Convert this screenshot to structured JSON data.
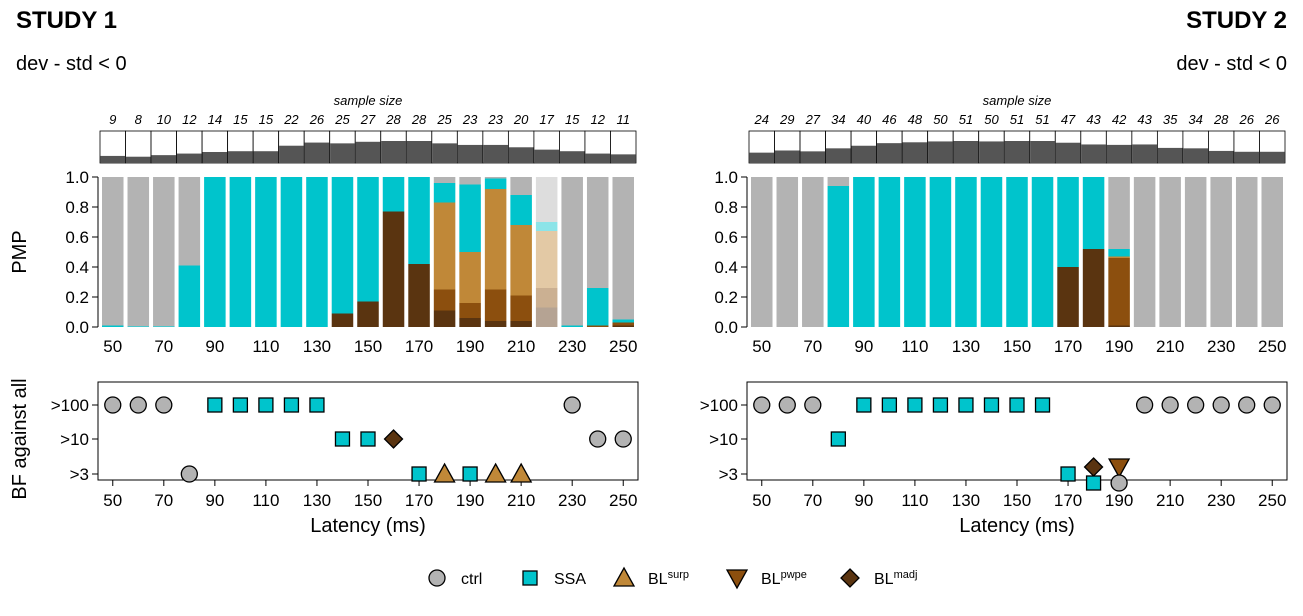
{
  "colors": {
    "ctrl": "#b3b3b3",
    "ssa": "#00c4cc",
    "bl_surp": "#c08838",
    "bl_pwpe": "#8c4f0e",
    "bl_madj": "#5a3410",
    "sample_bar": "#555555"
  },
  "legend": [
    {
      "key": "ctrl",
      "label": "ctrl",
      "sup": "",
      "shape": "circle",
      "icon": "circle-icon"
    },
    {
      "key": "ssa",
      "label": "SSA",
      "sup": "",
      "shape": "square",
      "icon": "square-icon"
    },
    {
      "key": "bl_surp",
      "label": "BL",
      "sup": "surp",
      "shape": "triangle-up",
      "icon": "triangle-up-icon"
    },
    {
      "key": "bl_pwpe",
      "label": "BL",
      "sup": "pwpe",
      "shape": "triangle-down",
      "icon": "triangle-down-icon"
    },
    {
      "key": "bl_madj",
      "label": "BL",
      "sup": "madj",
      "shape": "diamond",
      "icon": "diamond-icon"
    }
  ],
  "chart_data": [
    {
      "panel": "study1",
      "title": "STUDY 1",
      "subtitle": "dev - std < 0",
      "sample_size_label": "sample size",
      "type": "bar",
      "x": [
        50,
        60,
        70,
        80,
        90,
        100,
        110,
        120,
        130,
        140,
        150,
        160,
        170,
        180,
        190,
        200,
        210,
        220,
        230,
        240,
        250
      ],
      "sample_size": [
        9,
        8,
        10,
        12,
        14,
        15,
        15,
        22,
        26,
        25,
        27,
        28,
        28,
        25,
        23,
        23,
        20,
        17,
        15,
        12,
        11
      ],
      "sample_size_max": 28,
      "faded": [
        220
      ],
      "pmp_ylabel": "PMP",
      "pmp_yticks": [
        "0.0",
        "0.2",
        "0.4",
        "0.6",
        "0.8",
        "1.0"
      ],
      "pmp_xticks": [
        50,
        70,
        90,
        110,
        130,
        150,
        170,
        190,
        210,
        230,
        250
      ],
      "pmp": {
        "bl_madj": [
          0,
          0,
          0,
          0,
          0,
          0,
          0,
          0,
          0,
          0.09,
          0.17,
          0.77,
          0.42,
          0.11,
          0.06,
          0.04,
          0.04,
          0.13,
          0,
          0,
          0.01
        ],
        "bl_pwpe": [
          0,
          0,
          0,
          0,
          0,
          0,
          0,
          0,
          0,
          0,
          0,
          0,
          0,
          0.14,
          0.1,
          0.21,
          0.17,
          0.13,
          0,
          0.01,
          0.02
        ],
        "bl_surp": [
          0,
          0,
          0,
          0,
          0,
          0,
          0,
          0,
          0,
          0,
          0,
          0,
          0,
          0.58,
          0.34,
          0.67,
          0.47,
          0.38,
          0,
          0,
          0
        ],
        "ssa": [
          0.01,
          0.005,
          0.005,
          0.41,
          1.0,
          1.0,
          1.0,
          1.0,
          1.0,
          0.91,
          0.83,
          0.23,
          0.58,
          0.13,
          0.45,
          0.07,
          0.2,
          0.06,
          0.01,
          0.25,
          0.02
        ],
        "ctrl": [
          0.99,
          0.995,
          0.995,
          0.59,
          0,
          0,
          0,
          0,
          0,
          0,
          0,
          0,
          0,
          0.04,
          0.05,
          0.01,
          0.12,
          0.3,
          0.99,
          0.74,
          0.95
        ]
      },
      "bf_ylabel": "BF against all",
      "bf_levels": [
        ">100",
        ">10",
        ">3"
      ],
      "bf_xticks": [
        50,
        70,
        90,
        110,
        130,
        150,
        170,
        190,
        210,
        230,
        250
      ],
      "bf_points": [
        {
          "x": 50,
          "level": ">100",
          "model": "ctrl"
        },
        {
          "x": 60,
          "level": ">100",
          "model": "ctrl"
        },
        {
          "x": 70,
          "level": ">100",
          "model": "ctrl"
        },
        {
          "x": 80,
          "level": ">3",
          "model": "ctrl"
        },
        {
          "x": 90,
          "level": ">100",
          "model": "ssa"
        },
        {
          "x": 100,
          "level": ">100",
          "model": "ssa"
        },
        {
          "x": 110,
          "level": ">100",
          "model": "ssa"
        },
        {
          "x": 120,
          "level": ">100",
          "model": "ssa"
        },
        {
          "x": 130,
          "level": ">100",
          "model": "ssa"
        },
        {
          "x": 140,
          "level": ">10",
          "model": "ssa"
        },
        {
          "x": 150,
          "level": ">10",
          "model": "ssa"
        },
        {
          "x": 160,
          "level": ">10",
          "model": "bl_madj"
        },
        {
          "x": 170,
          "level": ">3",
          "model": "ssa"
        },
        {
          "x": 180,
          "level": ">3",
          "model": "bl_surp"
        },
        {
          "x": 190,
          "level": ">3",
          "model": "ssa"
        },
        {
          "x": 200,
          "level": ">3",
          "model": "bl_surp"
        },
        {
          "x": 210,
          "level": ">3",
          "model": "bl_surp"
        },
        {
          "x": 230,
          "level": ">100",
          "model": "ctrl"
        },
        {
          "x": 240,
          "level": ">10",
          "model": "ctrl"
        },
        {
          "x": 250,
          "level": ">10",
          "model": "ctrl"
        }
      ],
      "xlabel": "Latency (ms)"
    },
    {
      "panel": "study2",
      "title": "STUDY 2",
      "subtitle": "dev - std < 0",
      "sample_size_label": "sample size",
      "type": "bar",
      "x": [
        50,
        60,
        70,
        80,
        90,
        100,
        110,
        120,
        130,
        140,
        150,
        160,
        170,
        180,
        190,
        200,
        210,
        220,
        230,
        240,
        250
      ],
      "sample_size": [
        24,
        29,
        27,
        34,
        40,
        46,
        48,
        50,
        51,
        50,
        51,
        51,
        47,
        43,
        42,
        43,
        35,
        34,
        28,
        26,
        26
      ],
      "sample_size_max": 51,
      "faded": [],
      "pmp_ylabel": "",
      "pmp_yticks": [
        "0.0",
        "0.2",
        "0.4",
        "0.6",
        "0.8",
        "1.0"
      ],
      "pmp_xticks": [
        50,
        70,
        90,
        110,
        130,
        150,
        170,
        190,
        210,
        230,
        250
      ],
      "pmp": {
        "bl_madj": [
          0,
          0,
          0,
          0,
          0,
          0,
          0,
          0,
          0,
          0,
          0,
          0,
          0.4,
          0.52,
          0.01,
          0,
          0,
          0,
          0,
          0,
          0
        ],
        "bl_pwpe": [
          0,
          0,
          0,
          0,
          0,
          0,
          0,
          0,
          0,
          0,
          0,
          0,
          0,
          0,
          0.45,
          0,
          0,
          0,
          0,
          0,
          0
        ],
        "bl_surp": [
          0,
          0,
          0,
          0,
          0,
          0,
          0,
          0,
          0,
          0,
          0,
          0,
          0,
          0,
          0.01,
          0,
          0,
          0,
          0,
          0,
          0
        ],
        "ssa": [
          0,
          0,
          0,
          0.94,
          1.0,
          1.0,
          1.0,
          1.0,
          1.0,
          1.0,
          1.0,
          1.0,
          0.6,
          0.48,
          0.05,
          0,
          0,
          0,
          0,
          0,
          0
        ],
        "ctrl": [
          1.0,
          1.0,
          1.0,
          0.06,
          0,
          0,
          0,
          0,
          0,
          0,
          0,
          0,
          0,
          0,
          0.48,
          1.0,
          1.0,
          1.0,
          1.0,
          1.0,
          1.0
        ]
      },
      "bf_ylabel": "",
      "bf_levels": [
        ">100",
        ">10",
        ">3"
      ],
      "bf_xticks": [
        50,
        70,
        90,
        110,
        130,
        150,
        170,
        190,
        210,
        230,
        250
      ],
      "bf_points": [
        {
          "x": 50,
          "level": ">100",
          "model": "ctrl"
        },
        {
          "x": 60,
          "level": ">100",
          "model": "ctrl"
        },
        {
          "x": 70,
          "level": ">100",
          "model": "ctrl"
        },
        {
          "x": 80,
          "level": ">10",
          "model": "ssa"
        },
        {
          "x": 90,
          "level": ">100",
          "model": "ssa"
        },
        {
          "x": 100,
          "level": ">100",
          "model": "ssa"
        },
        {
          "x": 110,
          "level": ">100",
          "model": "ssa"
        },
        {
          "x": 120,
          "level": ">100",
          "model": "ssa"
        },
        {
          "x": 130,
          "level": ">100",
          "model": "ssa"
        },
        {
          "x": 140,
          "level": ">100",
          "model": "ssa"
        },
        {
          "x": 150,
          "level": ">100",
          "model": "ssa"
        },
        {
          "x": 160,
          "level": ">100",
          "model": "ssa"
        },
        {
          "x": 170,
          "level": ">3",
          "model": "ssa"
        },
        {
          "x": 180,
          "level": ">3",
          "model": "bl_madj",
          "nudge": "up"
        },
        {
          "x": 180,
          "level": ">3",
          "model": "ssa",
          "nudge": "down"
        },
        {
          "x": 190,
          "level": ">3",
          "model": "bl_pwpe",
          "nudge": "up"
        },
        {
          "x": 190,
          "level": ">3",
          "model": "ctrl",
          "nudge": "down"
        },
        {
          "x": 200,
          "level": ">100",
          "model": "ctrl"
        },
        {
          "x": 210,
          "level": ">100",
          "model": "ctrl"
        },
        {
          "x": 220,
          "level": ">100",
          "model": "ctrl"
        },
        {
          "x": 230,
          "level": ">100",
          "model": "ctrl"
        },
        {
          "x": 240,
          "level": ">100",
          "model": "ctrl"
        },
        {
          "x": 250,
          "level": ">100",
          "model": "ctrl"
        }
      ],
      "xlabel": "Latency (ms)"
    }
  ]
}
